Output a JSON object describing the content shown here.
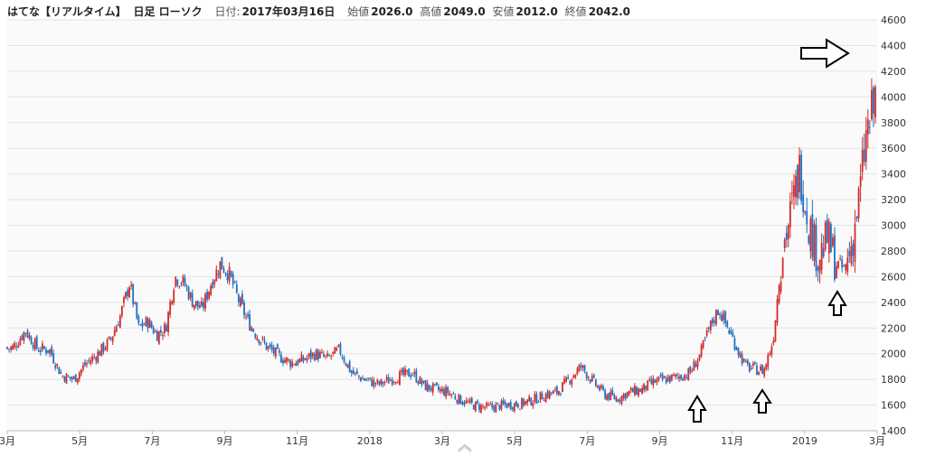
{
  "header": {
    "title": "はてな",
    "mode": "【リアルタイム】",
    "chart_kind": "日足 ローソク",
    "date_label": "日付:",
    "date_value": "2017年03月16日",
    "open_label": "始値",
    "open_value": "2026.0",
    "high_label": "高値",
    "high_value": "2049.0",
    "low_label": "安値",
    "low_value": "2012.0",
    "close_label": "終値",
    "close_value": "2042.0"
  },
  "colors": {
    "up": "#d22b2b",
    "down": "#1f6fc2",
    "grid": "#e3e3e3",
    "plot_bg": "#fafafa",
    "arrow": "#000000"
  },
  "icons": {
    "annotation_arrows": "outline-arrow-icon",
    "scroll": "chevron-up-icon"
  },
  "chart_data": {
    "type": "candlestick",
    "ylim": [
      1400,
      4600
    ],
    "y_ticks": [
      "1400",
      "1600",
      "1800",
      "2000",
      "2200",
      "2400",
      "2600",
      "2800",
      "3000",
      "3200",
      "3400",
      "3600",
      "3800",
      "4000",
      "4200",
      "4400",
      "4600"
    ],
    "x_ticks": [
      "3月",
      "5月",
      "7月",
      "9月",
      "11月",
      "2018",
      "3月",
      "5月",
      "7月",
      "9月",
      "11月",
      "2019",
      "3月"
    ],
    "x_range": [
      "2017-03",
      "2019-03"
    ],
    "grid": true,
    "series_points": [
      [
        "2017-03",
        2050
      ],
      [
        "2017-03",
        2180
      ],
      [
        "2017-03",
        2040
      ],
      [
        "2017-04",
        2030
      ],
      [
        "2017-04",
        1830
      ],
      [
        "2017-04",
        1800
      ],
      [
        "2017-05",
        1920
      ],
      [
        "2017-05",
        2000
      ],
      [
        "2017-05",
        2100
      ],
      [
        "2017-06",
        2300
      ],
      [
        "2017-06",
        2550
      ],
      [
        "2017-06",
        2200
      ],
      [
        "2017-06",
        2250
      ],
      [
        "2017-07",
        2150
      ],
      [
        "2017-07",
        2200
      ],
      [
        "2017-07",
        2600
      ],
      [
        "2017-07",
        2550
      ],
      [
        "2017-08",
        2400
      ],
      [
        "2017-08",
        2350
      ],
      [
        "2017-08",
        2550
      ],
      [
        "2017-08",
        2700
      ],
      [
        "2017-09",
        2620
      ],
      [
        "2017-09",
        2420
      ],
      [
        "2017-09",
        2260
      ],
      [
        "2017-09",
        2150
      ],
      [
        "2017-10",
        2050
      ],
      [
        "2017-10",
        1980
      ],
      [
        "2017-10",
        1930
      ],
      [
        "2017-11",
        1950
      ],
      [
        "2017-11",
        2000
      ],
      [
        "2017-11",
        1960
      ],
      [
        "2017-12",
        2030
      ],
      [
        "2017-12",
        1850
      ],
      [
        "2017-12",
        1800
      ],
      [
        "2018-01",
        1760
      ],
      [
        "2018-01",
        1820
      ],
      [
        "2018-02",
        1850
      ],
      [
        "2018-02",
        1750
      ],
      [
        "2018-02",
        1720
      ],
      [
        "2018-03",
        1700
      ],
      [
        "2018-03",
        1640
      ],
      [
        "2018-03",
        1600
      ],
      [
        "2018-04",
        1580
      ],
      [
        "2018-04",
        1600
      ],
      [
        "2018-05",
        1610
      ],
      [
        "2018-05",
        1640
      ],
      [
        "2018-05",
        1680
      ],
      [
        "2018-06",
        1700
      ],
      [
        "2018-06",
        1800
      ],
      [
        "2018-06",
        1900
      ],
      [
        "2018-07",
        1780
      ],
      [
        "2018-07",
        1680
      ],
      [
        "2018-07",
        1650
      ],
      [
        "2018-08",
        1700
      ],
      [
        "2018-08",
        1720
      ],
      [
        "2018-08",
        1780
      ],
      [
        "2018-09",
        1800
      ],
      [
        "2018-09",
        1820
      ],
      [
        "2018-09",
        1850
      ],
      [
        "2018-10",
        2000
      ],
      [
        "2018-10",
        2200
      ],
      [
        "2018-10",
        2350
      ],
      [
        "2018-10",
        2200
      ],
      [
        "2018-11",
        2050
      ],
      [
        "2018-11",
        1900
      ],
      [
        "2018-11",
        1880
      ],
      [
        "2018-11",
        1870
      ],
      [
        "2018-12",
        2100
      ],
      [
        "2018-12",
        2800
      ],
      [
        "2018-12",
        3100
      ],
      [
        "2018-12",
        3450
      ],
      [
        "2019-01",
        3000
      ],
      [
        "2019-01",
        2750
      ],
      [
        "2019-01",
        2900
      ],
      [
        "2019-01",
        2700
      ],
      [
        "2019-02",
        2650
      ],
      [
        "2019-02",
        2850
      ],
      [
        "2019-02",
        3200
      ],
      [
        "2019-02",
        3700
      ],
      [
        "2019-02",
        3900
      ],
      [
        "2019-03",
        4300
      ],
      [
        "2019-03",
        4050
      ],
      [
        "2019-03",
        3950
      ],
      [
        "2019-03",
        3700
      ]
    ]
  }
}
